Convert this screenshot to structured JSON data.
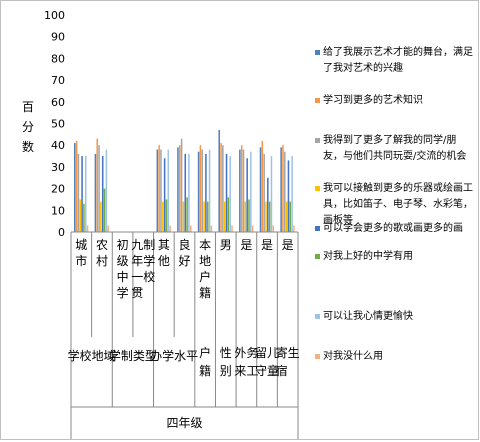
{
  "chart_data": {
    "type": "bar",
    "ylabel": "百分数",
    "ylim": [
      0,
      100
    ],
    "yticks": [
      0,
      10,
      20,
      30,
      40,
      50,
      60,
      70,
      80,
      90,
      100
    ],
    "group_title": "四年级",
    "categories": [
      {
        "label": "城市",
        "bin": "学校地域"
      },
      {
        "label": "农村",
        "bin": "学校地域"
      },
      {
        "label": "初级中学",
        "bin": "学制类型"
      },
      {
        "label": "九年一贯制学校",
        "bin": "学制类型"
      },
      {
        "label": "其他",
        "bin": "办学水平"
      },
      {
        "label": "良好",
        "bin": "办学水平"
      },
      {
        "label": "本地户籍",
        "bin": "户籍"
      },
      {
        "label": "男",
        "bin": "性别"
      },
      {
        "label": "是",
        "bin": "外来务工"
      },
      {
        "label": "是",
        "bin": "留守儿童"
      },
      {
        "label": "是",
        "bin": "寄宿生"
      }
    ],
    "bins": [
      "学校地域",
      "学制类型",
      "办学水平",
      "户籍",
      "性别",
      "外来务工",
      "留守儿童",
      "寄宿生"
    ],
    "series": [
      {
        "name": "给了我展示艺术才能的舞台，满足了我对艺术的兴趣",
        "color": "#4f81bd",
        "values": [
          41,
          36,
          null,
          null,
          38,
          39,
          37,
          47,
          38,
          39,
          39
        ]
      },
      {
        "name": "学习到更多的艺术知识",
        "color": "#f79646",
        "values": [
          42,
          43,
          null,
          null,
          40,
          40,
          40,
          41,
          40,
          42,
          40
        ]
      },
      {
        "name": "我得到了更多了解我的同学/朋友，与他们共同玩耍/交流的机会",
        "color": "#a5a5a5",
        "values": [
          36,
          40,
          null,
          null,
          38,
          43,
          38,
          40,
          38,
          36,
          37
        ]
      },
      {
        "name": "我可以接触到更多的乐器或绘画工具，比如笛子、电子琴、水彩笔，画板等",
        "color": "#ffc000",
        "values": [
          15,
          14,
          null,
          null,
          14,
          14,
          14,
          14,
          14,
          14,
          14
        ]
      },
      {
        "name": "可以学会更多的歌或画更多的画",
        "color": "#4472c4",
        "values": [
          35,
          35,
          null,
          null,
          34,
          36,
          36,
          36,
          34,
          25,
          33
        ]
      },
      {
        "name": "对我上好的中学有用",
        "color": "#70ad47",
        "values": [
          13,
          20,
          null,
          null,
          15,
          16,
          14,
          16,
          15,
          14,
          14
        ]
      },
      {
        "name": "可以让我心情更愉快",
        "color": "#9dc3e6",
        "values": [
          35,
          38,
          null,
          null,
          38,
          36,
          38,
          35,
          37,
          35,
          35
        ]
      },
      {
        "name": "对我没什么用",
        "color": "#f4b183",
        "values": [
          3,
          3,
          null,
          null,
          3,
          3,
          3,
          3,
          3,
          3,
          3
        ]
      }
    ],
    "grid": false,
    "legend": "right"
  }
}
